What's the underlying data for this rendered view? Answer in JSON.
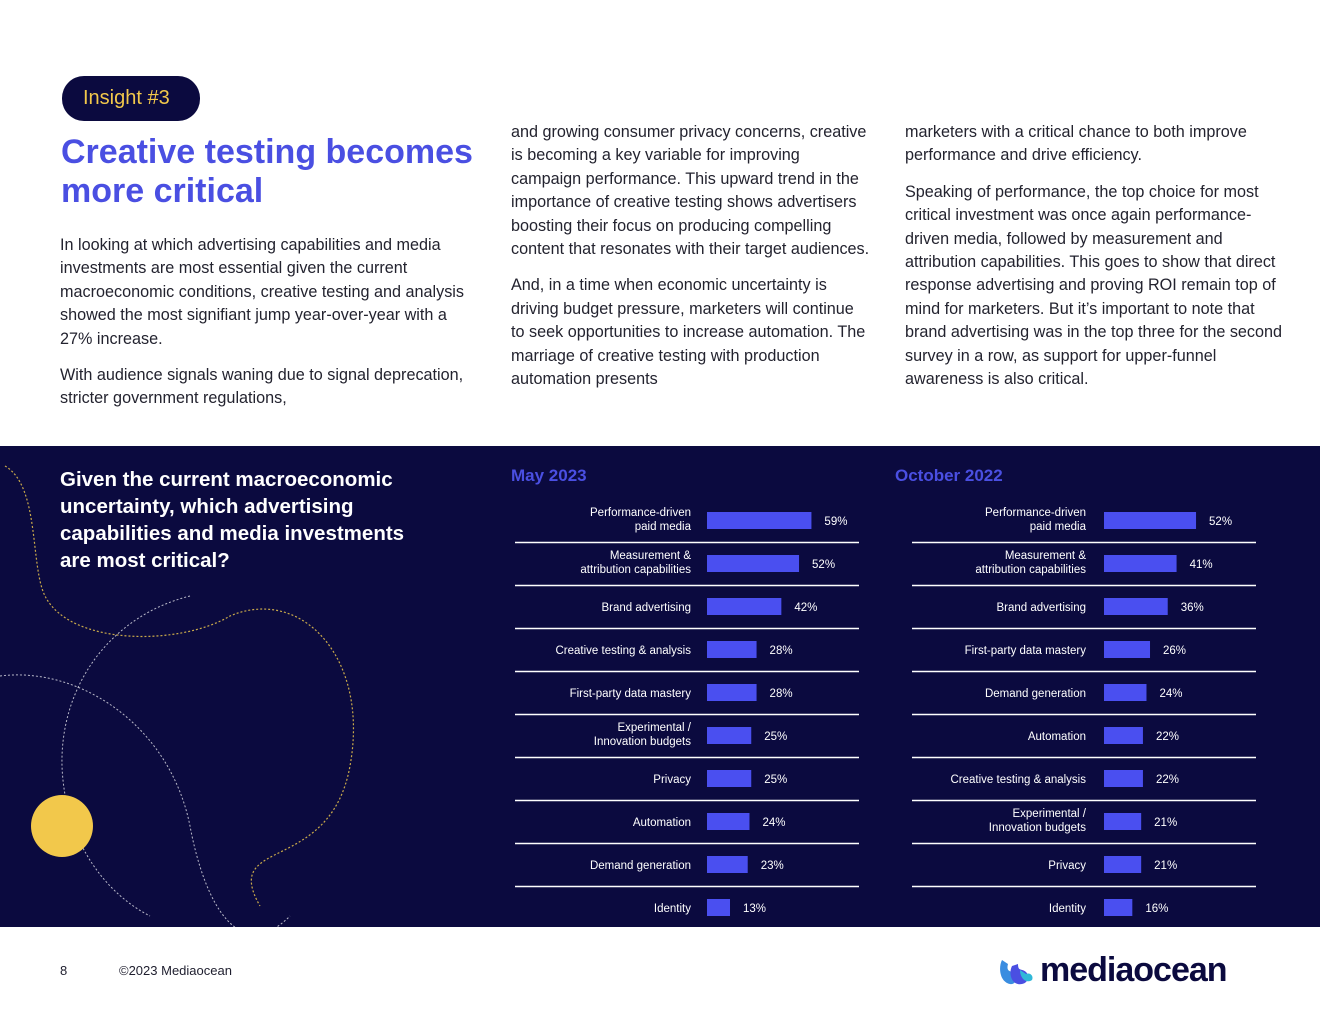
{
  "insight_label": "Insight #3",
  "headline": "Creative testing becomes more critical",
  "body": {
    "col1": [
      "In looking at which advertising capabilities and media investments are most essential given the current macroeconomic conditions, creative testing and analysis showed the most signifiant jump year-over-year with a 27% increase.",
      "With audience signals waning due to signal deprecation, stricter government regulations,"
    ],
    "col2": [
      "and growing consumer privacy concerns, creative is becoming a key variable for improving campaign performance. This upward trend in the importance of creative testing shows advertisers boosting their focus on producing compelling content that resonates with their target audiences.",
      "And, in a time when economic uncertainty is driving budget pressure, marketers will continue to seek opportunities to increase automation. The marriage of creative testing with production automation presents"
    ],
    "col3": [
      "marketers with a critical chance to both improve performance and drive efficiency.",
      "Speaking of performance, the top choice for most critical investment was once again performance-driven media, followed by measurement and attribution capabilities. This goes to show that direct response advertising and proving ROI remain top of mind for marketers. But it’s important to note that brand advertising was in the top three for the second survey in a row, as support for upper-funnel awareness is also critical."
    ]
  },
  "question": "Given the current macroeconomic uncertainty, which advertising capabilities and media investments are most critical?",
  "colors": {
    "navy": "#0b0a3f",
    "accent_blue": "#4a4fe2",
    "bar_blue": "#4a4ff0",
    "yellow": "#f2c84b"
  },
  "chart_data": [
    {
      "type": "bar",
      "orientation": "horizontal",
      "title": "May 2023",
      "categories": [
        [
          "Performance-driven",
          "paid media"
        ],
        [
          "Measurement &",
          "attribution capabilities"
        ],
        [
          "Brand advertising"
        ],
        [
          "Creative testing & analysis"
        ],
        [
          "First-party data mastery"
        ],
        [
          "Experimental /",
          "Innovation budgets"
        ],
        [
          "Privacy"
        ],
        [
          "Automation"
        ],
        [
          "Demand generation"
        ],
        [
          "Identity"
        ]
      ],
      "values": [
        59,
        52,
        42,
        28,
        28,
        25,
        25,
        24,
        23,
        13
      ],
      "value_labels": [
        "59%",
        "52%",
        "42%",
        "28%",
        "28%",
        "25%",
        "25%",
        "24%",
        "23%",
        "13%"
      ],
      "unit": "%"
    },
    {
      "type": "bar",
      "orientation": "horizontal",
      "title": "October 2022",
      "categories": [
        [
          "Performance-driven",
          "paid media"
        ],
        [
          "Measurement &",
          "attribution capabilities"
        ],
        [
          "Brand advertising"
        ],
        [
          "First-party data mastery"
        ],
        [
          "Demand generation"
        ],
        [
          "Automation"
        ],
        [
          "Creative testing & analysis"
        ],
        [
          "Experimental /",
          "Innovation budgets"
        ],
        [
          "Privacy"
        ],
        [
          "Identity"
        ]
      ],
      "values": [
        52,
        41,
        36,
        26,
        24,
        22,
        22,
        21,
        21,
        16
      ],
      "value_labels": [
        "52%",
        "41%",
        "36%",
        "26%",
        "24%",
        "22%",
        "22%",
        "21%",
        "21%",
        "16%"
      ],
      "unit": "%"
    }
  ],
  "footer": {
    "page_number": "8",
    "copyright": "©2023 Mediaocean",
    "logo_text": "mediaocean"
  }
}
